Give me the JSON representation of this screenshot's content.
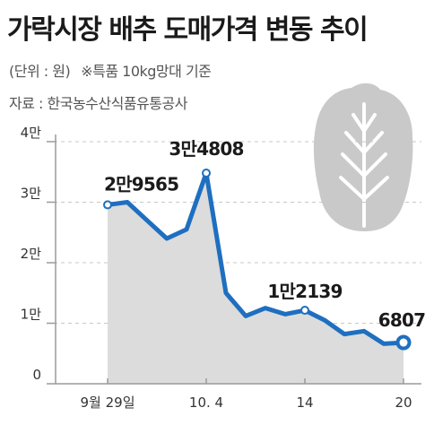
{
  "title": "가락시장 배추 도매가격 변동 추이",
  "unit_label": "(단위 : 원)",
  "unit_note": "※특품 10kg망대 기준",
  "source": "자료 : 한국농수산식품유통공사",
  "icon": "cabbage-icon",
  "colors": {
    "line": "#1f6fc0",
    "area": "#dcdcdc",
    "axis": "#9a9a9a",
    "grid": "#c8c8c8",
    "icon": "#c9c9c9"
  },
  "chart_data": {
    "type": "area",
    "title": "가락시장 배추 도매가격 변동 추이",
    "xlabel": "",
    "ylabel": "",
    "ylim": [
      0,
      40000
    ],
    "yticks": [
      {
        "value": 40000,
        "label": "4만"
      },
      {
        "value": 30000,
        "label": "3만"
      },
      {
        "value": 20000,
        "label": "2만"
      },
      {
        "value": 10000,
        "label": "1만"
      },
      {
        "value": 0,
        "label": "0"
      }
    ],
    "xticks": [
      {
        "index": 0,
        "label": "9월 29일"
      },
      {
        "index": 5,
        "label": "10. 4"
      },
      {
        "index": 10,
        "label": "14"
      },
      {
        "index": 15,
        "label": "20"
      }
    ],
    "series": [
      {
        "values": [
          29565,
          30000,
          27000,
          24000,
          25500,
          34808,
          15000,
          11200,
          12500,
          11500,
          12139,
          10500,
          8200,
          8700,
          6600,
          6807
        ]
      }
    ],
    "annotations": [
      {
        "index": 0,
        "label": "2만9565"
      },
      {
        "index": 5,
        "label": "3만4808"
      },
      {
        "index": 10,
        "label": "1만2139"
      },
      {
        "index": 15,
        "label": "6807"
      }
    ]
  }
}
